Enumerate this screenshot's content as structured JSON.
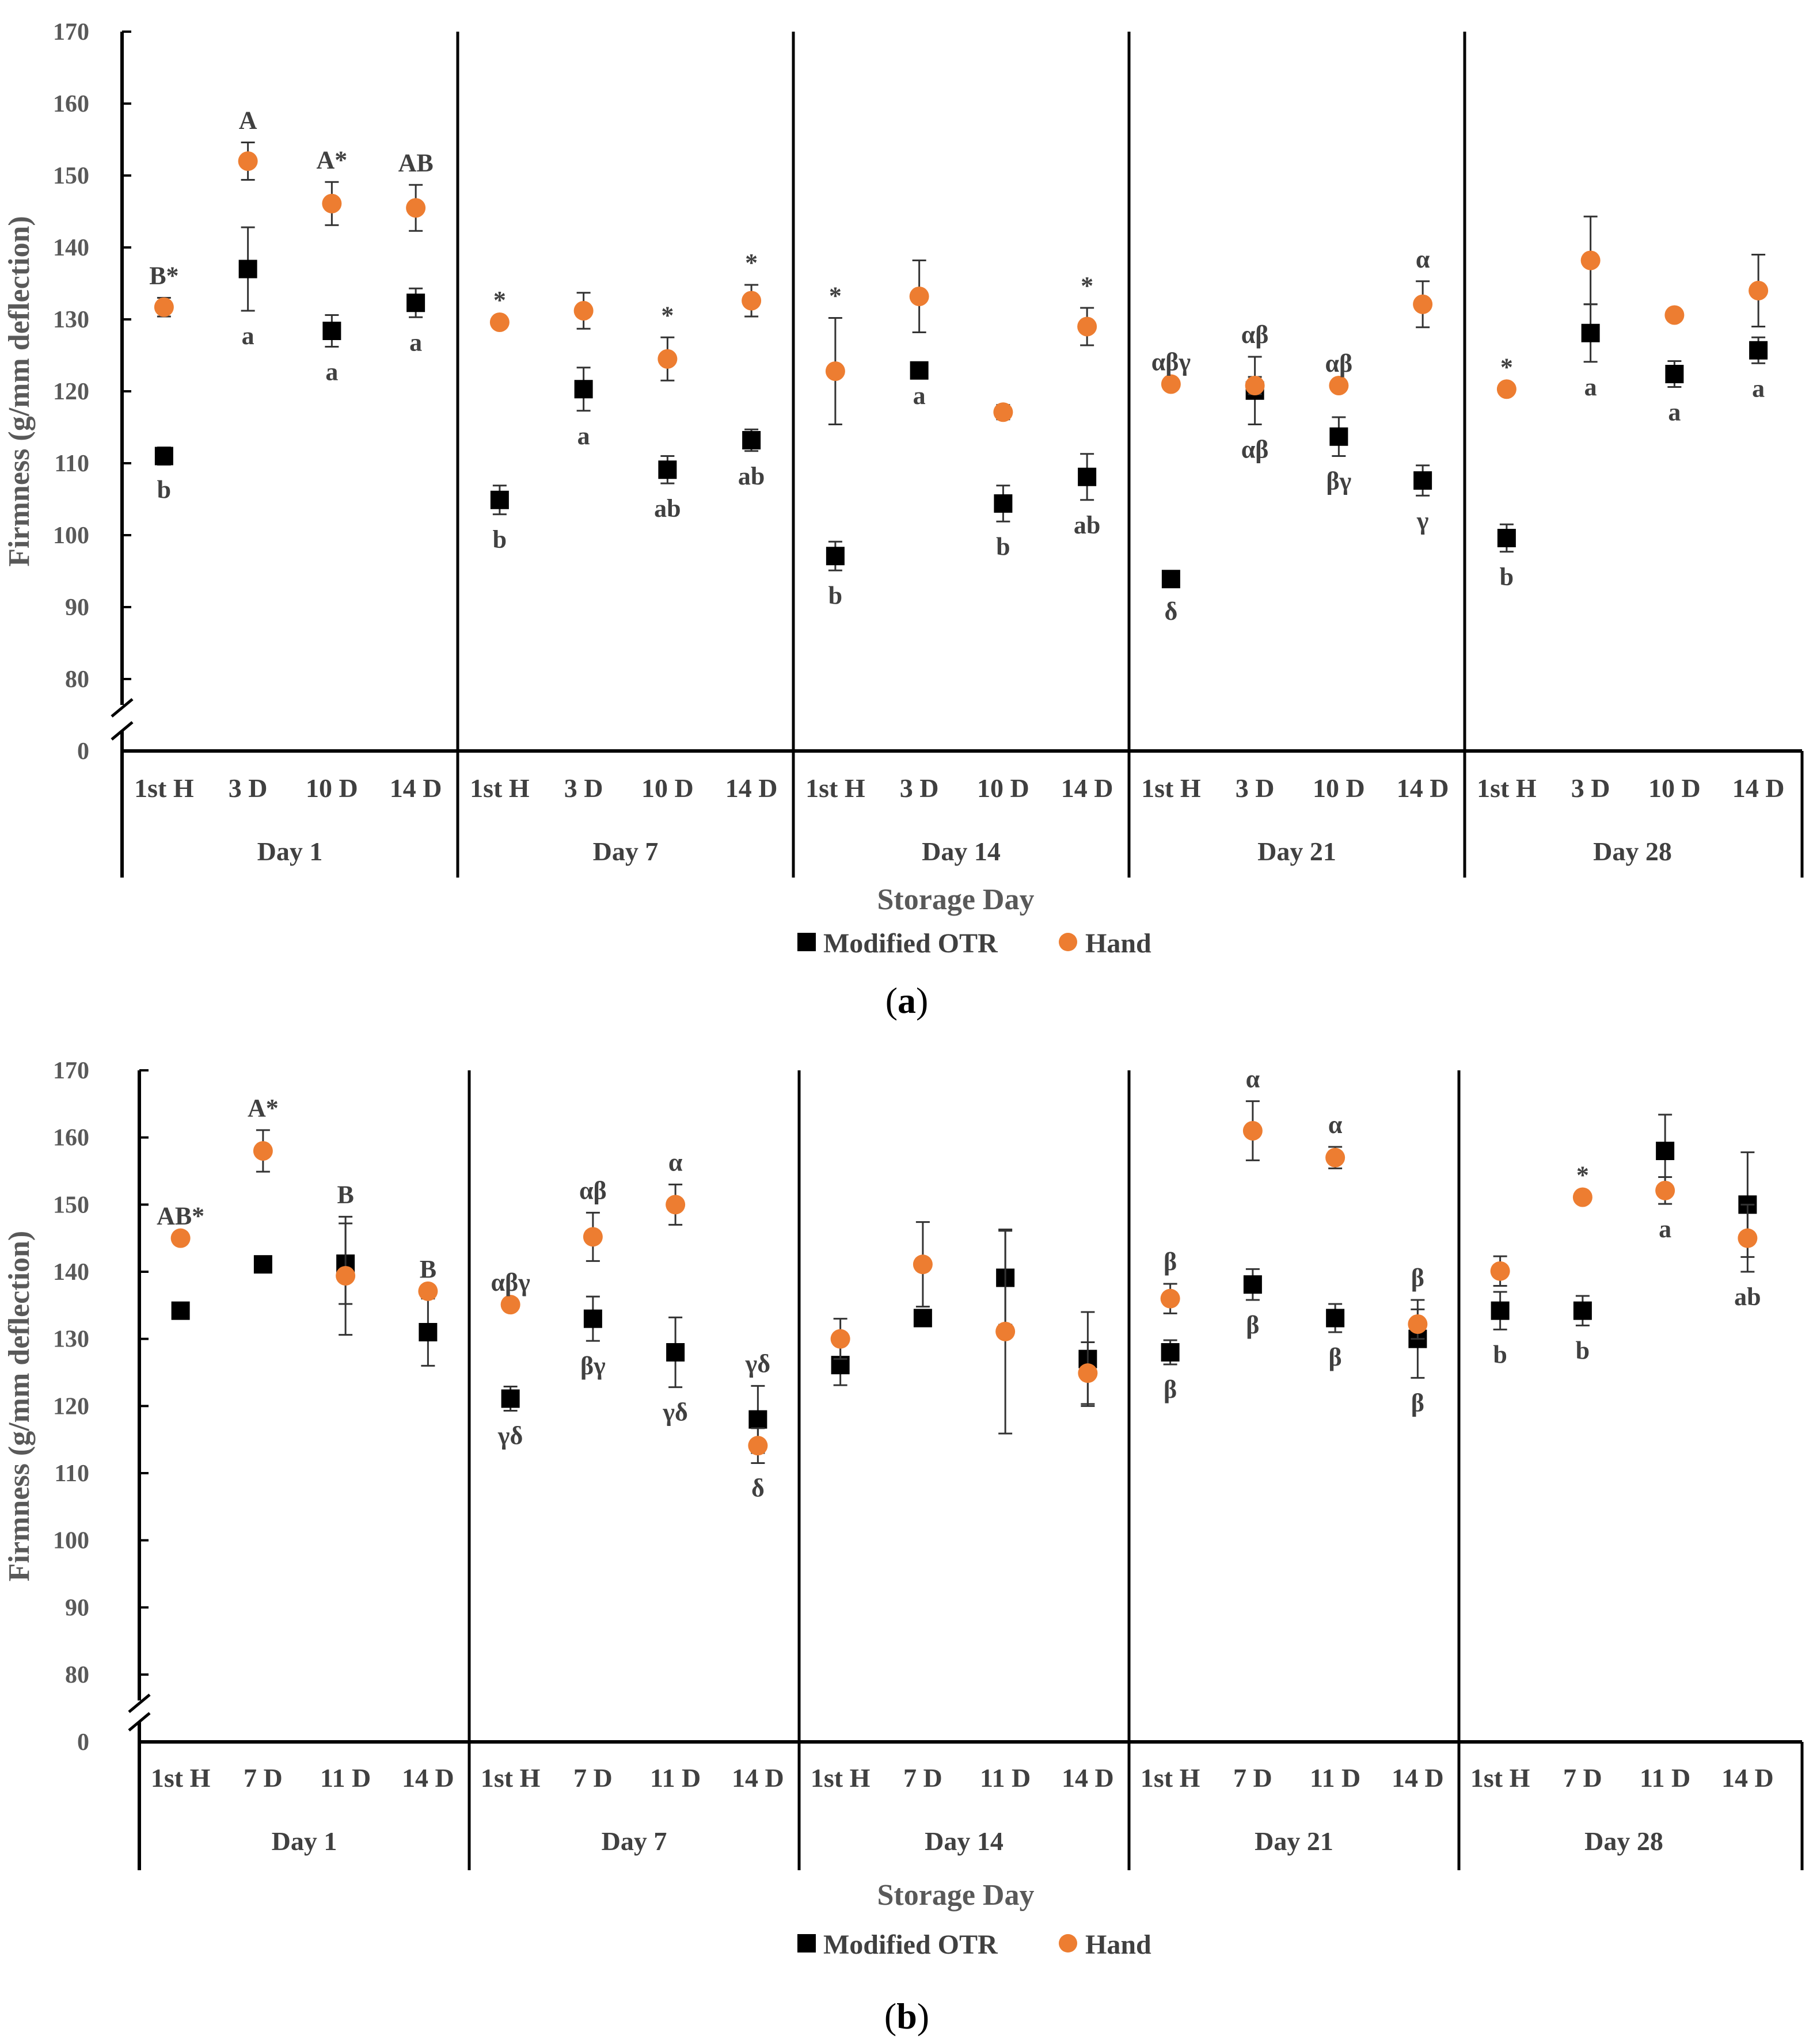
{
  "chart_data": [
    {
      "type": "scatter",
      "panel_label": "(a)",
      "ylabel": "Firmness (g/mm deflection)",
      "xlabel": "Storage Day",
      "y_ticks": [
        "0",
        "80",
        "90",
        "100",
        "110",
        "120",
        "130",
        "140",
        "150",
        "160",
        "170"
      ],
      "ylim": [
        80,
        170
      ],
      "axis_break": true,
      "legend": [
        "Modified OTR",
        "Hand"
      ],
      "groups": [
        {
          "label": "Day 1",
          "categories": [
            "1st H",
            "3 D",
            "10 D",
            "14 D"
          ],
          "modified_otr": [
            111,
            137,
            128.4,
            132.3
          ],
          "modified_otr_err": [
            1.2,
            5.8,
            2.2,
            2.0
          ],
          "hand": [
            131.7,
            152,
            146.1,
            145.5
          ],
          "hand_err": [
            1.3,
            2.6,
            3.0,
            3.2
          ],
          "hand_labels": [
            "B*",
            "A",
            "A*",
            "AB"
          ],
          "otr_labels": [
            "b",
            "a",
            "a",
            "a"
          ]
        },
        {
          "label": "Day 7",
          "categories": [
            "1st H",
            "3 D",
            "10 D",
            "14 D"
          ],
          "modified_otr": [
            104.9,
            120.3,
            109.1,
            113.2
          ],
          "modified_otr_err": [
            2.0,
            3.0,
            1.9,
            1.5
          ],
          "hand": [
            129.6,
            131.2,
            124.5,
            132.6
          ],
          "hand_err": [
            0,
            2.5,
            3.0,
            2.2
          ],
          "hand_labels": [
            "*",
            "",
            "*",
            "*"
          ],
          "otr_labels": [
            "b",
            "a",
            "ab",
            "ab"
          ]
        },
        {
          "label": "Day 14",
          "categories": [
            "1st H",
            "3 D",
            "10 D",
            "14 D"
          ],
          "modified_otr": [
            97.1,
            122.9,
            104.4,
            108.1
          ],
          "modified_otr_err": [
            2.0,
            0,
            2.5,
            3.2
          ],
          "hand": [
            122.8,
            133.2,
            117.1,
            129
          ],
          "hand_err": [
            7.4,
            5.0,
            1.0,
            2.6
          ],
          "hand_labels": [
            "*",
            "",
            "",
            "*"
          ],
          "otr_labels": [
            "b",
            "a",
            "b",
            "ab"
          ]
        },
        {
          "label": "Day 21",
          "categories": [
            "1st H",
            "3 D",
            "10 D",
            "14 D"
          ],
          "modified_otr": [
            93.9,
            120.1,
            113.7,
            107.6
          ],
          "modified_otr_err": [
            1.0,
            4.7,
            2.7,
            2.1
          ],
          "hand": [
            121,
            120.8,
            120.8,
            132.1
          ],
          "hand_err": [
            0,
            1.2,
            0,
            3.2
          ],
          "hand_labels": [
            "αβγ",
            "αβ",
            "αβ",
            "α"
          ],
          "otr_labels": [
            "δ",
            "αβ",
            "βγ",
            "γ"
          ]
        },
        {
          "label": "Day 28",
          "categories": [
            "1st H",
            "3 D",
            "10 D",
            "14 D"
          ],
          "modified_otr": [
            99.6,
            128.1,
            122.4,
            125.7
          ],
          "modified_otr_err": [
            1.9,
            4.0,
            1.8,
            1.8
          ],
          "hand": [
            120.3,
            138.2,
            130.6,
            134
          ],
          "hand_err": [
            0,
            6.1,
            0,
            5.0
          ],
          "hand_labels": [
            "*",
            "",
            "",
            ""
          ],
          "otr_labels": [
            "b",
            "a",
            "a",
            "a"
          ]
        }
      ]
    },
    {
      "type": "scatter",
      "panel_label": "(b)",
      "ylabel": "Firmness (g/mm deflection)",
      "xlabel": "Storage Day",
      "y_ticks": [
        "0",
        "80",
        "90",
        "100",
        "110",
        "120",
        "130",
        "140",
        "150",
        "160",
        "170"
      ],
      "ylim": [
        80,
        170
      ],
      "axis_break": true,
      "legend": [
        "Modified OTR",
        "Hand"
      ],
      "groups": [
        {
          "label": "Day 1",
          "categories": [
            "1st H",
            "7 D",
            "11 D",
            "14 D"
          ],
          "modified_otr": [
            134.2,
            141.1,
            141.2,
            131
          ],
          "modified_otr_err": [
            0,
            0,
            6.0,
            5.0
          ],
          "hand": [
            145,
            158,
            139.4,
            137.1
          ],
          "hand_err": [
            0,
            3.1,
            8.8,
            0
          ],
          "hand_labels": [
            "AB*",
            "A*",
            "B",
            "B"
          ],
          "otr_labels": [
            "",
            "",
            "",
            ""
          ]
        },
        {
          "label": "Day 7",
          "categories": [
            "1st H",
            "7 D",
            "11 D",
            "14 D"
          ],
          "modified_otr": [
            121.1,
            133,
            128,
            118
          ],
          "modified_otr_err": [
            1.8,
            3.3,
            5.2,
            5.0
          ],
          "hand": [
            135.1,
            145.2,
            150,
            114.1
          ],
          "hand_err": [
            0,
            3.6,
            3.0,
            2.6
          ],
          "hand_labels": [
            "αβγ",
            "αβ",
            "α",
            "γδ"
          ],
          "otr_labels": [
            "γδ",
            "βγ",
            "γδ",
            "δ"
          ]
        },
        {
          "label": "Day 14",
          "categories": [
            "1st H",
            "7 D",
            "11 D",
            "14 D"
          ],
          "modified_otr": [
            126.1,
            133.1,
            139.1,
            127
          ],
          "modified_otr_err": [
            3.0,
            0,
            7.0,
            7.0
          ],
          "hand": [
            130,
            141.1,
            131.1,
            124.9
          ],
          "hand_err": [
            3.0,
            6.3,
            15.2,
            4.6
          ],
          "hand_labels": [
            "",
            "",
            "",
            ""
          ],
          "otr_labels": [
            "",
            "",
            "",
            ""
          ]
        },
        {
          "label": "Day 21",
          "categories": [
            "1st H",
            "7 D",
            "11 D",
            "14 D"
          ],
          "modified_otr": [
            128,
            138.1,
            133.1,
            130
          ],
          "modified_otr_err": [
            1.8,
            2.3,
            2.1,
            5.8
          ],
          "hand": [
            136,
            161,
            157,
            132.2
          ],
          "hand_err": [
            2.2,
            4.4,
            1.6,
            2.2
          ],
          "hand_labels": [
            "β",
            "α",
            "α",
            "β"
          ],
          "otr_labels": [
            "β",
            "β",
            "β",
            "β"
          ]
        },
        {
          "label": "Day 28",
          "categories": [
            "1st H",
            "7 D",
            "11 D",
            "14 D"
          ],
          "modified_otr": [
            134.2,
            134.2,
            158,
            150
          ],
          "modified_otr_err": [
            2.8,
            2.2,
            5.4,
            7.8
          ],
          "hand": [
            140.1,
            151.1,
            152.1,
            145
          ],
          "hand_err": [
            2.2,
            0,
            2.0,
            5.0
          ],
          "hand_labels": [
            "",
            "*",
            "",
            ""
          ],
          "otr_labels": [
            "b",
            "b",
            "a",
            "ab"
          ]
        }
      ]
    }
  ],
  "colors": {
    "hand": "#ED7D31",
    "otr": "#000000",
    "axis": "#000000",
    "grid_text": "#595959"
  }
}
